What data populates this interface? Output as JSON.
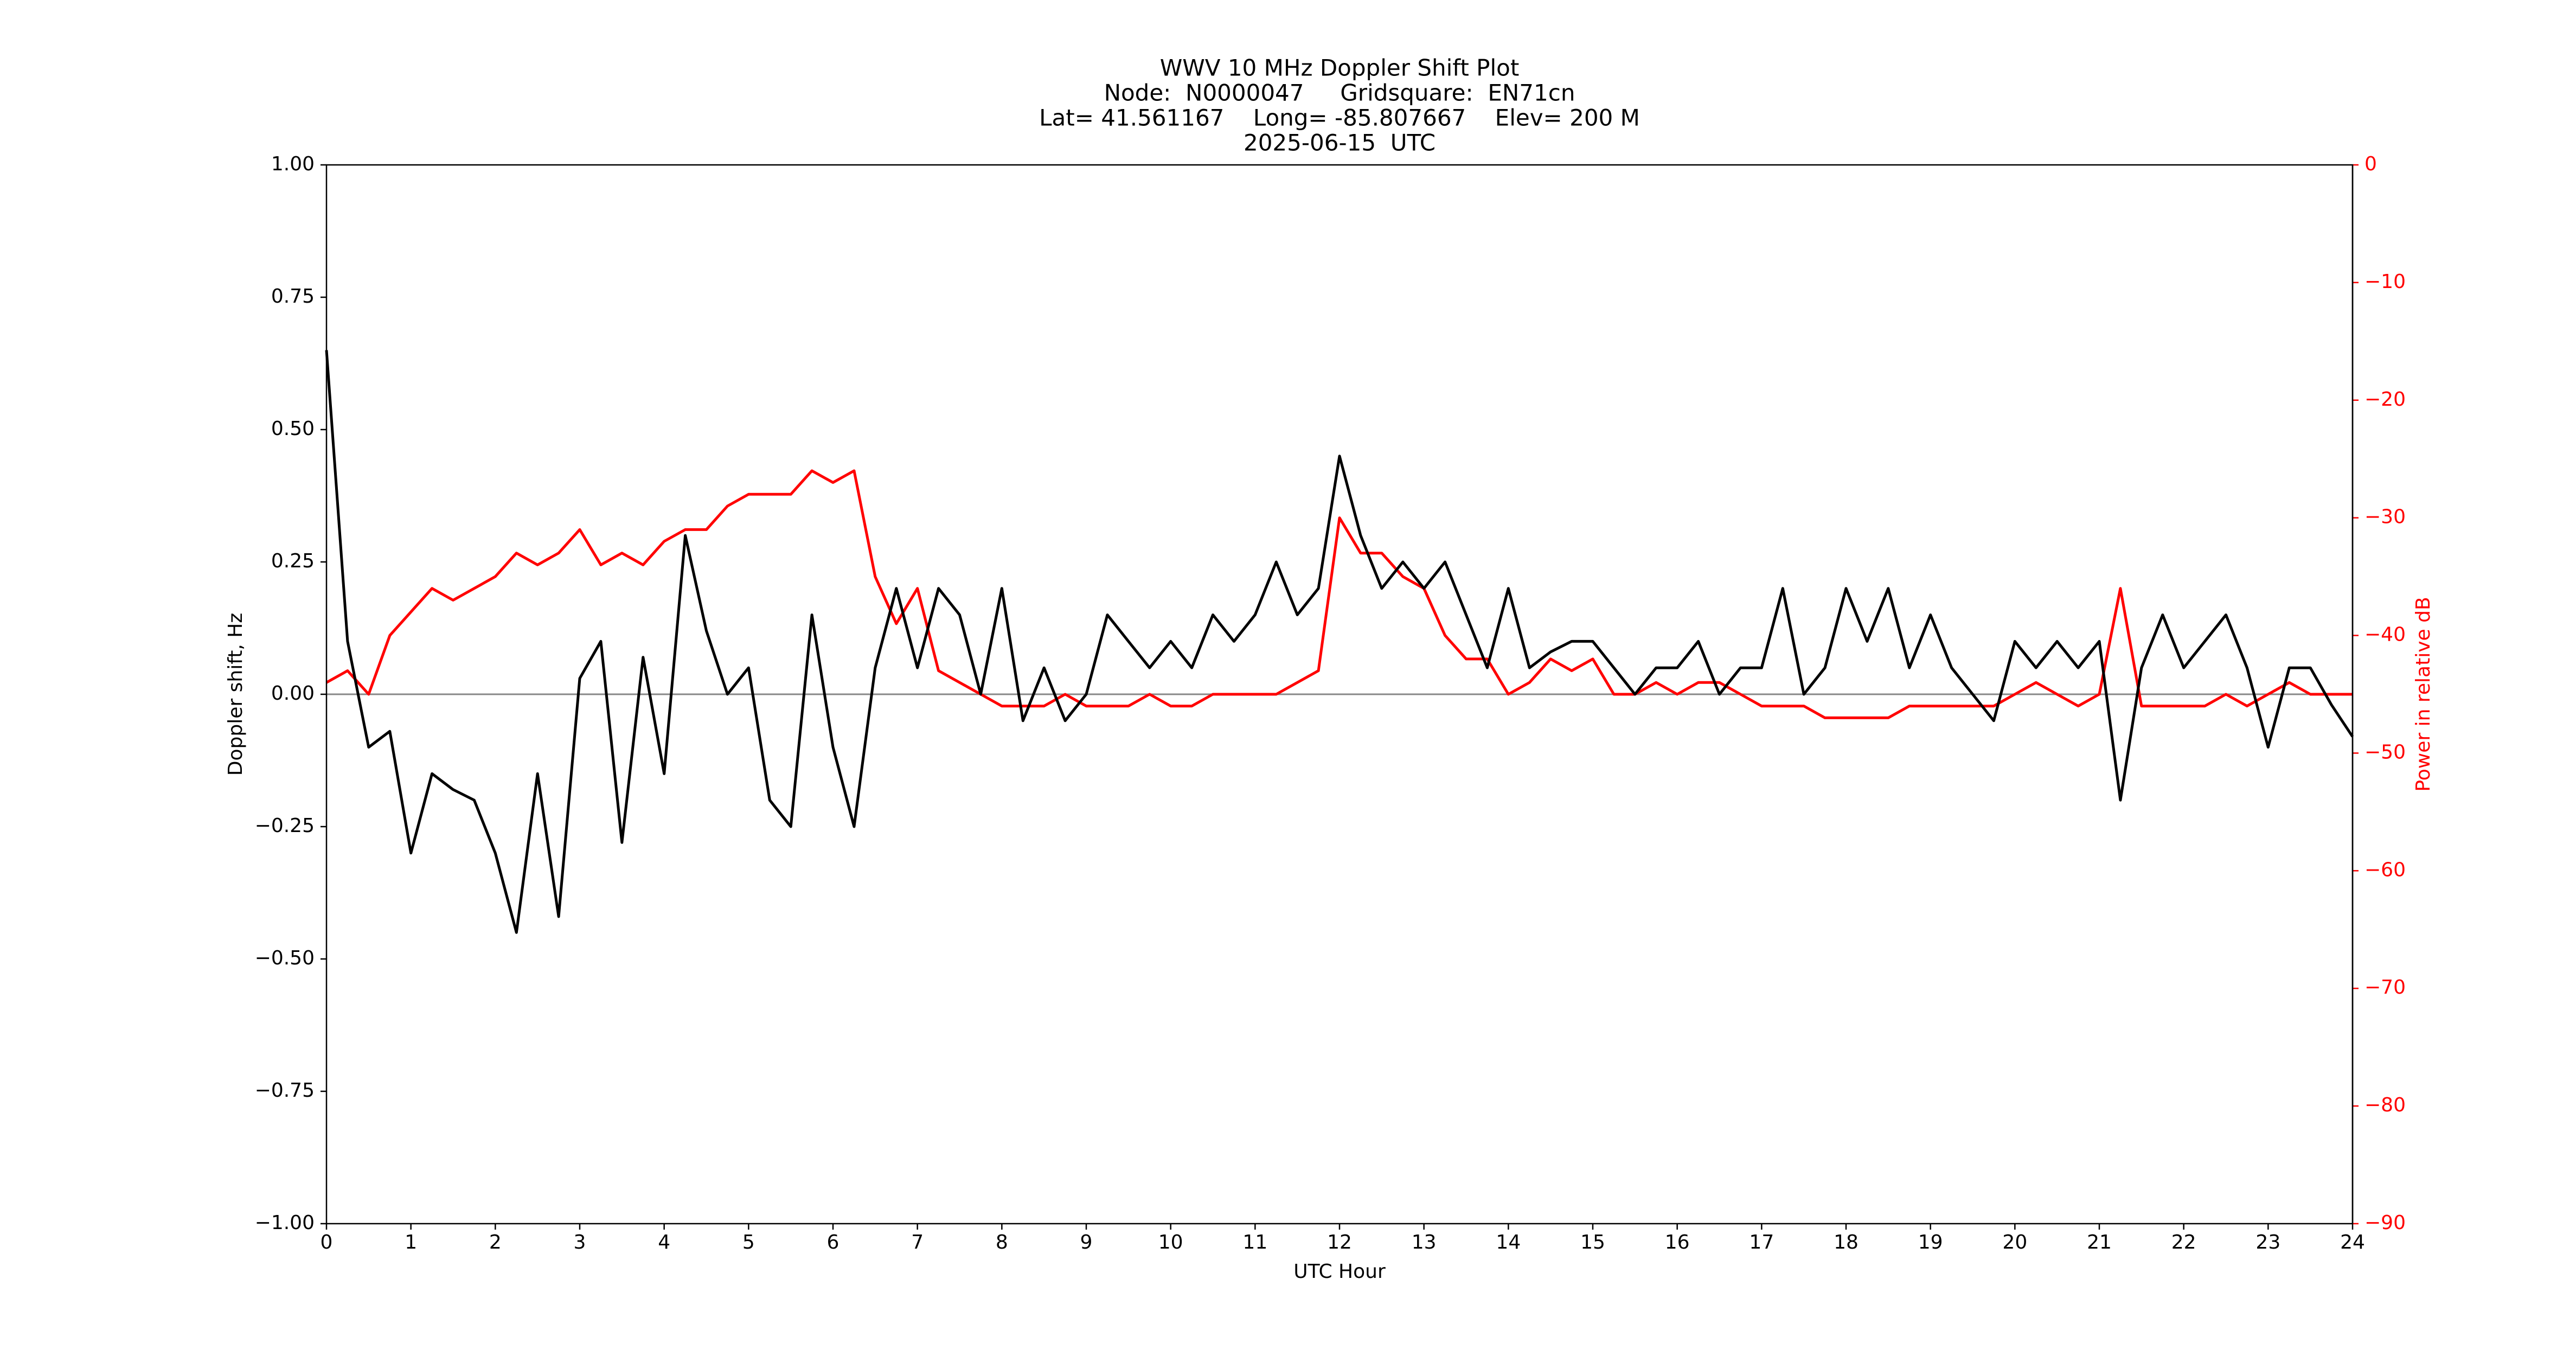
{
  "chart_data": {
    "type": "line",
    "title": "WWV 10 MHz Doppler Shift Plot",
    "subtitle": [
      "Node:  N0000047     Gridsquare:  EN71cn",
      "Lat= 41.561167    Long= -85.807667    Elev= 200 M",
      "2025-06-15  UTC"
    ],
    "xlabel": "UTC Hour",
    "ylabel": "Doppler shift, Hz",
    "y2label": "Power in relative dB",
    "y2color": "#ff0000",
    "hline": 0,
    "x": [
      0,
      0.25,
      0.5,
      0.75,
      1,
      1.25,
      1.5,
      1.75,
      2,
      2.25,
      2.5,
      2.75,
      3,
      3.25,
      3.5,
      3.75,
      4,
      4.25,
      4.5,
      4.75,
      5,
      5.25,
      5.5,
      5.75,
      6,
      6.25,
      6.5,
      6.75,
      7,
      7.25,
      7.5,
      7.75,
      8,
      8.25,
      8.5,
      8.75,
      9,
      9.25,
      9.5,
      9.75,
      10,
      10.25,
      10.5,
      10.75,
      11,
      11.25,
      11.5,
      11.75,
      12,
      12.25,
      12.5,
      12.75,
      13,
      13.25,
      13.5,
      13.75,
      14,
      14.25,
      14.5,
      14.75,
      15,
      15.25,
      15.5,
      15.75,
      16,
      16.25,
      16.5,
      16.75,
      17,
      17.25,
      17.5,
      17.75,
      18,
      18.25,
      18.5,
      18.75,
      19,
      19.25,
      19.5,
      19.75,
      20,
      20.25,
      20.5,
      20.75,
      21,
      21.25,
      21.5,
      21.75,
      22,
      22.25,
      22.5,
      22.75,
      23,
      23.25,
      23.5,
      23.75,
      24
    ],
    "series": [
      {
        "name": "Doppler shift",
        "color": "#000000",
        "axis": "y",
        "values": [
          0.65,
          0.1,
          -0.1,
          -0.07,
          -0.3,
          -0.15,
          -0.18,
          -0.2,
          -0.3,
          -0.45,
          -0.15,
          -0.42,
          0.03,
          0.1,
          -0.28,
          0.07,
          -0.15,
          0.3,
          0.12,
          0.0,
          0.05,
          -0.2,
          -0.25,
          0.15,
          -0.1,
          -0.25,
          0.05,
          0.2,
          0.05,
          0.2,
          0.15,
          0.0,
          0.2,
          -0.05,
          0.05,
          -0.05,
          0.0,
          0.15,
          0.1,
          0.05,
          0.1,
          0.05,
          0.15,
          0.1,
          0.15,
          0.25,
          0.15,
          0.2,
          0.45,
          0.3,
          0.2,
          0.25,
          0.2,
          0.25,
          0.15,
          0.05,
          0.2,
          0.05,
          0.08,
          0.1,
          0.1,
          0.05,
          0.0,
          0.05,
          0.05,
          0.1,
          0.0,
          0.05,
          0.05,
          0.2,
          0.0,
          0.05,
          0.2,
          0.1,
          0.2,
          0.05,
          0.15,
          0.05,
          0.0,
          -0.05,
          0.1,
          0.05,
          0.1,
          0.05,
          0.1,
          -0.2,
          0.05,
          0.15,
          0.05,
          0.1,
          0.15,
          0.05,
          -0.1,
          0.05,
          0.05,
          -0.02,
          -0.08
        ]
      },
      {
        "name": "Power",
        "color": "#ff0000",
        "axis": "y2",
        "values": [
          -44,
          -43,
          -45,
          -40,
          -38,
          -36,
          -37,
          -36,
          -35,
          -33,
          -34,
          -33,
          -31,
          -34,
          -33,
          -34,
          -32,
          -31,
          -31,
          -29,
          -28,
          -28,
          -28,
          -26,
          -27,
          -26,
          -35,
          -39,
          -36,
          -43,
          -44,
          -45,
          -46,
          -46,
          -46,
          -45,
          -46,
          -46,
          -46,
          -45,
          -46,
          -46,
          -45,
          -45,
          -45,
          -45,
          -44,
          -43,
          -30,
          -33,
          -33,
          -35,
          -36,
          -40,
          -42,
          -42,
          -45,
          -44,
          -42,
          -43,
          -42,
          -45,
          -45,
          -44,
          -45,
          -44,
          -44,
          -45,
          -46,
          -46,
          -46,
          -47,
          -47,
          -47,
          -47,
          -46,
          -46,
          -46,
          -46,
          -46,
          -45,
          -44,
          -45,
          -46,
          -45,
          -36,
          -46,
          -46,
          -46,
          -46,
          -45,
          -46,
          -45,
          -44,
          -45,
          -45,
          -45
        ]
      }
    ],
    "xlim": [
      0,
      24
    ],
    "xticks": [
      0,
      1,
      2,
      3,
      4,
      5,
      6,
      7,
      8,
      9,
      10,
      11,
      12,
      13,
      14,
      15,
      16,
      17,
      18,
      19,
      20,
      21,
      22,
      23,
      24
    ],
    "ylim": [
      -1,
      1
    ],
    "yticks": [
      {
        "value": -1,
        "label": "−1.00"
      },
      {
        "value": -0.75,
        "label": "−0.75"
      },
      {
        "value": -0.5,
        "label": "−0.50"
      },
      {
        "value": -0.25,
        "label": "−0.25"
      },
      {
        "value": 0,
        "label": "0.00"
      },
      {
        "value": 0.25,
        "label": "0.25"
      },
      {
        "value": 0.5,
        "label": "0.50"
      },
      {
        "value": 0.75,
        "label": "0.75"
      },
      {
        "value": 1,
        "label": "1.00"
      }
    ],
    "y2lim": [
      -90,
      0
    ],
    "y2ticks": [
      {
        "value": -90,
        "label": "−90"
      },
      {
        "value": -80,
        "label": "−80"
      },
      {
        "value": -70,
        "label": "−70"
      },
      {
        "value": -60,
        "label": "−60"
      },
      {
        "value": -50,
        "label": "−50"
      },
      {
        "value": -40,
        "label": "−40"
      },
      {
        "value": -30,
        "label": "−30"
      },
      {
        "value": -20,
        "label": "−20"
      },
      {
        "value": -10,
        "label": "−10"
      },
      0
    ]
  }
}
